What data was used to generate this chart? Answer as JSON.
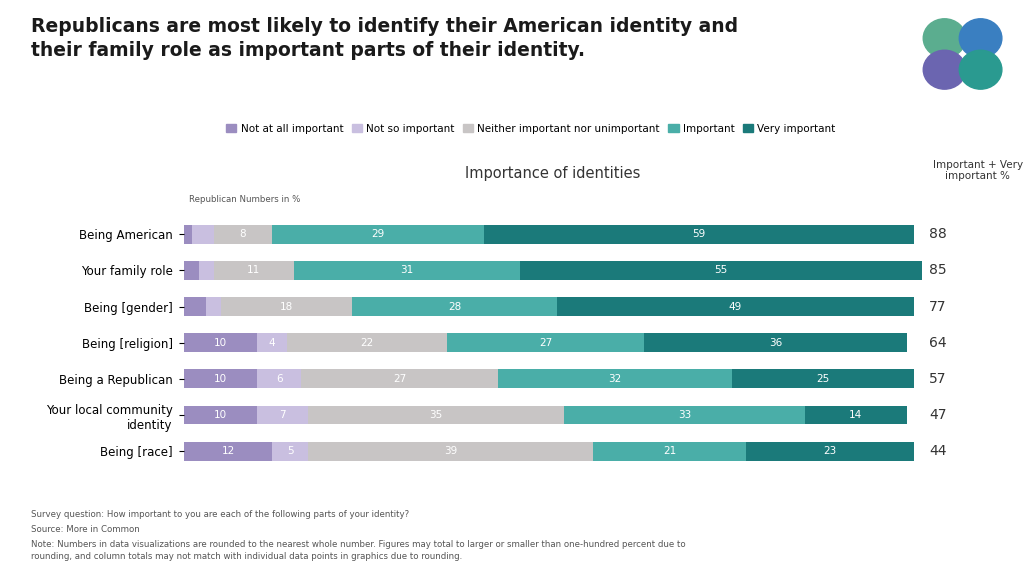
{
  "title": "Republicans are most likely to identify their American identity and\ntheir family role as important parts of their identity.",
  "subtitle": "Importance of identities",
  "subtitle_label": "Republican Numbers in %",
  "right_label": "Important + Very\nimportant %",
  "categories": [
    "Being American",
    "Your family role",
    "Being [gender]",
    "Being [religion]",
    "Being a Republican",
    "Your local community\nidentity",
    "Being [race]"
  ],
  "segments": {
    "Not at all important": [
      1,
      2,
      3,
      10,
      10,
      10,
      12
    ],
    "Not so important": [
      3,
      2,
      2,
      4,
      6,
      7,
      5
    ],
    "Neither important nor unimportant": [
      8,
      11,
      18,
      22,
      27,
      35,
      39
    ],
    "Important": [
      29,
      31,
      28,
      27,
      32,
      33,
      21
    ],
    "Very important": [
      59,
      55,
      49,
      36,
      25,
      14,
      23
    ]
  },
  "importance_totals": [
    88,
    85,
    77,
    64,
    57,
    47,
    44
  ],
  "colors": {
    "Not at all important": "#9B8DC0",
    "Not so important": "#C9BFE0",
    "Neither important nor unimportant": "#C8C5C5",
    "Important": "#4AAEA8",
    "Very important": "#1B7A7A"
  },
  "legend_order": [
    "Not at all important",
    "Not so important",
    "Neither important nor unimportant",
    "Important",
    "Very important"
  ],
  "background_color": "#FFFFFF",
  "bar_height": 0.52,
  "footnote_line1": "Survey question: How important to you are each of the following parts of your identity?",
  "footnote_line2": "Source: More in Common",
  "footnote_line3": "Note: Numbers in data visualizations are rounded to the nearest whole number. Figures may total to larger or smaller than one-hundred percent due to\nrounding, and column totals may not match with individual data points in graphics due to rounding."
}
